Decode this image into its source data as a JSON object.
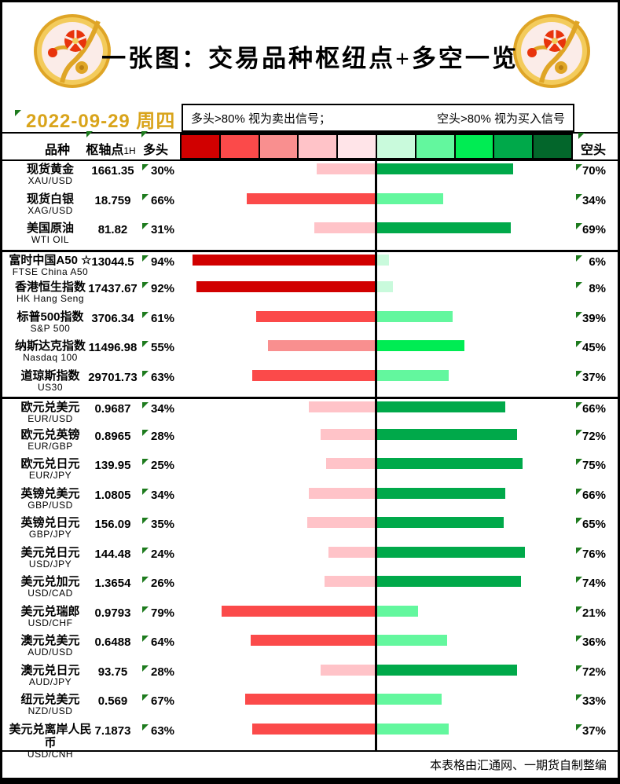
{
  "title": "一张图：交易品种枢纽点+多空一览",
  "date": "2022-09-29 周四",
  "legend": {
    "left": "多头>80% 视为卖出信号；",
    "right": "空头>80% 视为买入信号"
  },
  "columns": {
    "symbol": "品种",
    "pivot": "枢轴点",
    "pivot_suffix": "1H",
    "long": "多头",
    "short": "空头"
  },
  "footer": "本表格由汇通网、一期货自制整编",
  "colors": {
    "date_gold": "#D9A41B",
    "marker_green": "#1E7B1E",
    "scale": [
      "#D10000",
      "#FB4A4A",
      "#F98F8F",
      "#FFC3C8",
      "#FFE4E8",
      "#C9FADC",
      "#63F79E",
      "#00EC53",
      "#00A94A",
      "#03662B"
    ]
  },
  "section_breaks": [
    3,
    8
  ],
  "rows": [
    {
      "name": "现货黄金",
      "code": "XAU/USD",
      "pivot": "1661.35",
      "long": 30,
      "short": 70
    },
    {
      "name": "现货白银",
      "code": "XAG/USD",
      "pivot": "18.759",
      "long": 66,
      "short": 34
    },
    {
      "name": "美国原油",
      "code": "WTI OIL",
      "pivot": "81.82",
      "long": 31,
      "short": 69
    },
    {
      "name": "富时中国A50 ☆",
      "code": "FTSE China A50",
      "pivot": "13044.5",
      "long": 94,
      "short": 6
    },
    {
      "name": "香港恒生指数",
      "code": "HK Hang Seng",
      "pivot": "17437.67",
      "long": 92,
      "short": 8
    },
    {
      "name": "标普500指数",
      "code": "S&P 500",
      "pivot": "3706.34",
      "long": 61,
      "short": 39
    },
    {
      "name": "纳斯达克指数",
      "code": "Nasdaq 100",
      "pivot": "11496.98",
      "long": 55,
      "short": 45
    },
    {
      "name": "道琼斯指数",
      "code": "US30",
      "pivot": "29701.73",
      "long": 63,
      "short": 37
    },
    {
      "name": "欧元兑美元",
      "code": "EUR/USD",
      "pivot": "0.9687",
      "long": 34,
      "short": 66
    },
    {
      "name": "欧元兑英镑",
      "code": "EUR/GBP",
      "pivot": "0.8965",
      "long": 28,
      "short": 72
    },
    {
      "name": "欧元兑日元",
      "code": "EUR/JPY",
      "pivot": "139.95",
      "long": 25,
      "short": 75
    },
    {
      "name": "英镑兑美元",
      "code": "GBP/USD",
      "pivot": "1.0805",
      "long": 34,
      "short": 66
    },
    {
      "name": "英镑兑日元",
      "code": "GBP/JPY",
      "pivot": "156.09",
      "long": 35,
      "short": 65
    },
    {
      "name": "美元兑日元",
      "code": "USD/JPY",
      "pivot": "144.48",
      "long": 24,
      "short": 76
    },
    {
      "name": "美元兑加元",
      "code": "USD/CAD",
      "pivot": "1.3654",
      "long": 26,
      "short": 74
    },
    {
      "name": "美元兑瑞郎",
      "code": "USD/CHF",
      "pivot": "0.9793",
      "long": 79,
      "short": 21
    },
    {
      "name": "澳元兑美元",
      "code": "AUD/USD",
      "pivot": "0.6488",
      "long": 64,
      "short": 36
    },
    {
      "name": "澳元兑日元",
      "code": "AUD/JPY",
      "pivot": "93.75",
      "long": 28,
      "short": 72
    },
    {
      "name": "纽元兑美元",
      "code": "NZD/USD",
      "pivot": "0.569",
      "long": 67,
      "short": 33
    },
    {
      "name": "美元兑离岸人民币",
      "code": "USD/CNH",
      "pivot": "7.1873",
      "long": 63,
      "short": 37
    }
  ],
  "chart_data": {
    "type": "bar",
    "orientation": "diverging-horizontal",
    "title": "一张图：交易品种枢纽点+多空一览",
    "unit": "%",
    "xlim": [
      -100,
      100
    ],
    "legend_position": "top",
    "grid": false,
    "categories": [
      "XAU/USD",
      "XAG/USD",
      "WTI OIL",
      "FTSE China A50",
      "HK Hang Seng",
      "S&P 500",
      "Nasdaq 100",
      "US30",
      "EUR/USD",
      "EUR/GBP",
      "EUR/JPY",
      "GBP/USD",
      "GBP/JPY",
      "USD/JPY",
      "USD/CAD",
      "USD/CHF",
      "AUD/USD",
      "AUD/JPY",
      "NZD/USD",
      "USD/CNH"
    ],
    "series": [
      {
        "name": "多头",
        "values": [
          30,
          66,
          31,
          94,
          92,
          61,
          55,
          63,
          34,
          28,
          25,
          34,
          35,
          24,
          26,
          79,
          64,
          28,
          67,
          63
        ]
      },
      {
        "name": "空头",
        "values": [
          70,
          34,
          69,
          6,
          8,
          39,
          45,
          37,
          66,
          72,
          75,
          66,
          65,
          76,
          74,
          21,
          36,
          72,
          33,
          37
        ]
      }
    ],
    "pivot_points_1h": [
      1661.35,
      18.759,
      81.82,
      13044.5,
      17437.67,
      3706.34,
      11496.98,
      29701.73,
      0.9687,
      0.8965,
      139.95,
      1.0805,
      156.09,
      144.48,
      1.3654,
      0.9793,
      0.6488,
      93.75,
      0.569,
      7.1873
    ]
  }
}
